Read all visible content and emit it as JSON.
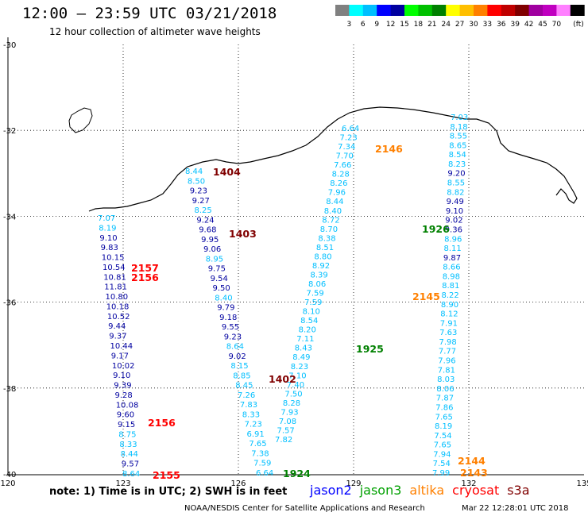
{
  "header": {
    "title": "12:00 – 23:59 UTC 03/21/2018",
    "subtitle": "12 hour collection of altimeter wave heights"
  },
  "colorbar": {
    "unit": "(ft)",
    "colors": [
      "#808080",
      "#00ffff",
      "#00bfff",
      "#0000ff",
      "#0000a0",
      "#00ff00",
      "#00c000",
      "#008000",
      "#ffff00",
      "#ffbf00",
      "#ff8000",
      "#ff0000",
      "#c00000",
      "#800000",
      "#a000a0",
      "#c000c0",
      "#ff80ff",
      "#000000"
    ],
    "labels": [
      "3",
      "6",
      "9",
      "12",
      "15",
      "18",
      "21",
      "24",
      "27",
      "30",
      "33",
      "36",
      "39",
      "42",
      "45",
      "70"
    ]
  },
  "axes": {
    "lon_ticks": [
      "120",
      "123",
      "126",
      "129",
      "132",
      "135"
    ],
    "lat_ticks": [
      "-30",
      "-32",
      "-34",
      "-36",
      "-38",
      "-40"
    ],
    "lon_range": [
      120,
      135
    ],
    "lat_range": [
      -40,
      -30
    ]
  },
  "tracks": [
    {
      "id": "track-123",
      "labels": [
        {
          "text": "7.07",
          "c": "#00bfff"
        },
        {
          "text": "8.19",
          "c": "#00bfff"
        },
        {
          "text": "9.10",
          "c": "#0000a0"
        },
        {
          "text": "9.83",
          "c": "#0000a0"
        },
        {
          "text": "10.15",
          "c": "#0000a0"
        },
        {
          "text": "10.54",
          "c": "#0000a0"
        },
        {
          "text": "10.81",
          "c": "#0000a0"
        },
        {
          "text": "11.81",
          "c": "#0000a0"
        },
        {
          "text": "10.80",
          "c": "#0000a0"
        },
        {
          "text": "10.18",
          "c": "#0000a0"
        },
        {
          "text": "10.52",
          "c": "#0000a0"
        },
        {
          "text": "9.44",
          "c": "#0000a0"
        },
        {
          "text": "9.37",
          "c": "#0000a0"
        },
        {
          "text": "10.44",
          "c": "#0000a0"
        },
        {
          "text": "9.17",
          "c": "#0000a0"
        },
        {
          "text": "10.02",
          "c": "#0000a0"
        },
        {
          "text": "9.10",
          "c": "#0000a0"
        },
        {
          "text": "9.39",
          "c": "#0000a0"
        },
        {
          "text": "9.28",
          "c": "#0000a0"
        },
        {
          "text": "10.08",
          "c": "#0000a0"
        },
        {
          "text": "9.60",
          "c": "#0000a0"
        },
        {
          "text": "9.15",
          "c": "#0000a0"
        },
        {
          "text": "8.75",
          "c": "#00bfff"
        },
        {
          "text": "8.33",
          "c": "#00bfff"
        },
        {
          "text": "8.44",
          "c": "#00bfff"
        },
        {
          "text": "9.57",
          "c": "#0000a0"
        },
        {
          "text": "8.64",
          "c": "#00bfff"
        }
      ]
    },
    {
      "id": "track-126",
      "labels": [
        {
          "text": "8.44",
          "c": "#00bfff"
        },
        {
          "text": "8.50",
          "c": "#00bfff"
        },
        {
          "text": "9.23",
          "c": "#0000a0"
        },
        {
          "text": "9.27",
          "c": "#0000a0"
        },
        {
          "text": "8.25",
          "c": "#00bfff"
        },
        {
          "text": "9.24",
          "c": "#0000a0"
        },
        {
          "text": "9.68",
          "c": "#0000a0"
        },
        {
          "text": "9.95",
          "c": "#0000a0"
        },
        {
          "text": "9.06",
          "c": "#0000a0"
        },
        {
          "text": "8.95",
          "c": "#00bfff"
        },
        {
          "text": "9.75",
          "c": "#0000a0"
        },
        {
          "text": "9.54",
          "c": "#0000a0"
        },
        {
          "text": "9.50",
          "c": "#0000a0"
        },
        {
          "text": "8.40",
          "c": "#00bfff"
        },
        {
          "text": "9.79",
          "c": "#0000a0"
        },
        {
          "text": "9.18",
          "c": "#0000a0"
        },
        {
          "text": "9.55",
          "c": "#0000a0"
        },
        {
          "text": "9.23",
          "c": "#0000a0"
        },
        {
          "text": "8.64",
          "c": "#00bfff"
        },
        {
          "text": "9.02",
          "c": "#0000a0"
        },
        {
          "text": "8.15",
          "c": "#00bfff"
        },
        {
          "text": "8.85",
          "c": "#00bfff"
        },
        {
          "text": "8.45",
          "c": "#00bfff"
        },
        {
          "text": "7.26",
          "c": "#00bfff"
        },
        {
          "text": "7.83",
          "c": "#00bfff"
        },
        {
          "text": "8.33",
          "c": "#00bfff"
        },
        {
          "text": "7.23",
          "c": "#00bfff"
        },
        {
          "text": "6.91",
          "c": "#00bfff"
        },
        {
          "text": "7.65",
          "c": "#00bfff"
        },
        {
          "text": "7.38",
          "c": "#00bfff"
        },
        {
          "text": "7.59",
          "c": "#00bfff"
        },
        {
          "text": "6.64",
          "c": "#00bfff"
        }
      ]
    },
    {
      "id": "track-129",
      "labels": [
        {
          "text": "6.64",
          "c": "#00bfff"
        },
        {
          "text": "7.23",
          "c": "#00bfff"
        },
        {
          "text": "7.34",
          "c": "#00bfff"
        },
        {
          "text": "7.70",
          "c": "#00bfff"
        },
        {
          "text": "7.66",
          "c": "#00bfff"
        },
        {
          "text": "8.28",
          "c": "#00bfff"
        },
        {
          "text": "8.26",
          "c": "#00bfff"
        },
        {
          "text": "7.96",
          "c": "#00bfff"
        },
        {
          "text": "8.44",
          "c": "#00bfff"
        },
        {
          "text": "8.40",
          "c": "#00bfff"
        },
        {
          "text": "8.72",
          "c": "#00bfff"
        },
        {
          "text": "8.70",
          "c": "#00bfff"
        },
        {
          "text": "8.38",
          "c": "#00bfff"
        },
        {
          "text": "8.51",
          "c": "#00bfff"
        },
        {
          "text": "8.80",
          "c": "#00bfff"
        },
        {
          "text": "8.92",
          "c": "#00bfff"
        },
        {
          "text": "8.39",
          "c": "#00bfff"
        },
        {
          "text": "8.06",
          "c": "#00bfff"
        },
        {
          "text": "7.59",
          "c": "#00bfff"
        },
        {
          "text": "7.59",
          "c": "#00bfff"
        },
        {
          "text": "8.10",
          "c": "#00bfff"
        },
        {
          "text": "8.54",
          "c": "#00bfff"
        },
        {
          "text": "8.20",
          "c": "#00bfff"
        },
        {
          "text": "7.11",
          "c": "#00bfff"
        },
        {
          "text": "8.43",
          "c": "#00bfff"
        },
        {
          "text": "8.49",
          "c": "#00bfff"
        },
        {
          "text": "8.23",
          "c": "#00bfff"
        },
        {
          "text": "7.10",
          "c": "#00bfff"
        },
        {
          "text": "7.40",
          "c": "#00bfff"
        },
        {
          "text": "7.50",
          "c": "#00bfff"
        },
        {
          "text": "8.28",
          "c": "#00bfff"
        },
        {
          "text": "7.93",
          "c": "#00bfff"
        },
        {
          "text": "7.08",
          "c": "#00bfff"
        },
        {
          "text": "7.57",
          "c": "#00bfff"
        },
        {
          "text": "7.82",
          "c": "#00bfff"
        }
      ]
    },
    {
      "id": "track-132",
      "labels": [
        {
          "text": "7.03",
          "c": "#00bfff"
        },
        {
          "text": "8.18",
          "c": "#00bfff"
        },
        {
          "text": "8.55",
          "c": "#00bfff"
        },
        {
          "text": "8.65",
          "c": "#00bfff"
        },
        {
          "text": "8.54",
          "c": "#00bfff"
        },
        {
          "text": "8.23",
          "c": "#00bfff"
        },
        {
          "text": "9.20",
          "c": "#0000a0"
        },
        {
          "text": "8.55",
          "c": "#00bfff"
        },
        {
          "text": "8.82",
          "c": "#00bfff"
        },
        {
          "text": "9.49",
          "c": "#0000a0"
        },
        {
          "text": "9.10",
          "c": "#0000a0"
        },
        {
          "text": "9.02",
          "c": "#0000a0"
        },
        {
          "text": "9.36",
          "c": "#0000a0"
        },
        {
          "text": "8.96",
          "c": "#00bfff"
        },
        {
          "text": "8.11",
          "c": "#00bfff"
        },
        {
          "text": "9.87",
          "c": "#0000a0"
        },
        {
          "text": "8.66",
          "c": "#00bfff"
        },
        {
          "text": "8.98",
          "c": "#00bfff"
        },
        {
          "text": "8.81",
          "c": "#00bfff"
        },
        {
          "text": "8.22",
          "c": "#00bfff"
        },
        {
          "text": "8.90",
          "c": "#00bfff"
        },
        {
          "text": "8.12",
          "c": "#00bfff"
        },
        {
          "text": "7.91",
          "c": "#00bfff"
        },
        {
          "text": "7.63",
          "c": "#00bfff"
        },
        {
          "text": "7.98",
          "c": "#00bfff"
        },
        {
          "text": "7.77",
          "c": "#00bfff"
        },
        {
          "text": "7.96",
          "c": "#00bfff"
        },
        {
          "text": "7.81",
          "c": "#00bfff"
        },
        {
          "text": "8.03",
          "c": "#00bfff"
        },
        {
          "text": "8.06",
          "c": "#00bfff"
        },
        {
          "text": "7.87",
          "c": "#00bfff"
        },
        {
          "text": "7.86",
          "c": "#00bfff"
        },
        {
          "text": "7.65",
          "c": "#00bfff"
        },
        {
          "text": "8.19",
          "c": "#00bfff"
        },
        {
          "text": "7.54",
          "c": "#00bfff"
        },
        {
          "text": "7.65",
          "c": "#00bfff"
        },
        {
          "text": "7.94",
          "c": "#00bfff"
        },
        {
          "text": "7.54",
          "c": "#00bfff"
        },
        {
          "text": "7.99",
          "c": "#00bfff"
        }
      ]
    }
  ],
  "time_labels": [
    {
      "text": "2157",
      "c": "#ff0000"
    },
    {
      "text": "2156",
      "c": "#ff0000"
    },
    {
      "text": "2156",
      "c": "#ff0000"
    },
    {
      "text": "2155",
      "c": "#ff0000"
    },
    {
      "text": "1404",
      "c": "#800000"
    },
    {
      "text": "1403",
      "c": "#800000"
    },
    {
      "text": "1402",
      "c": "#800000"
    },
    {
      "text": "2146",
      "c": "#ff8000"
    },
    {
      "text": "2145",
      "c": "#ff8000"
    },
    {
      "text": "2144",
      "c": "#ff8000"
    },
    {
      "text": "2143",
      "c": "#ff8000"
    },
    {
      "text": "1926",
      "c": "#008000"
    },
    {
      "text": "1925",
      "c": "#008000"
    },
    {
      "text": "1924",
      "c": "#008000"
    }
  ],
  "footer": {
    "note": "note: 1) Time is in UTC; 2) SWH is in feet",
    "satellites": [
      {
        "name": "jason2",
        "color": "#0000ff"
      },
      {
        "name": "jason3",
        "color": "#00a000"
      },
      {
        "name": "altika",
        "color": "#ff8000"
      },
      {
        "name": "cryosat",
        "color": "#ff0000"
      },
      {
        "name": "s3a",
        "color": "#800000"
      }
    ],
    "credit": "NOAA/NESDIS Center for Satellite Applications and Research",
    "timestamp": "Mar 22 12:28:01 UTC 2018"
  }
}
